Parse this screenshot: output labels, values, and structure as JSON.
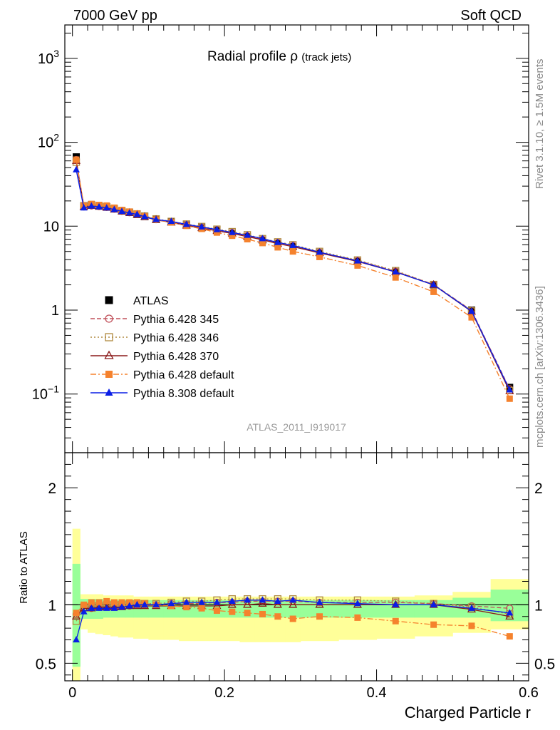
{
  "header": {
    "left": "7000 GeV pp",
    "right": "Soft QCD"
  },
  "side_labels": {
    "rivet": "Rivet 3.1.10, ≥ 1.5M events",
    "mcplots": "mcplots.cern.ch [arXiv:1306.3436]"
  },
  "chart_data": [
    {
      "type": "line",
      "title": "Radial profile",
      "title_symbol": "ρ",
      "title_suffix": "(track jets)",
      "watermark": "ATLAS_2011_I919017",
      "yscale": "log",
      "ylim": [
        0.02,
        2500
      ],
      "xlim": [
        -0.01,
        0.6
      ],
      "y_ticks": [
        {
          "value": 1000,
          "label": "10",
          "sup": "3"
        },
        {
          "value": 100,
          "label": "10",
          "sup": "2"
        },
        {
          "value": 10,
          "label": "10",
          "sup": ""
        },
        {
          "value": 1,
          "label": "1",
          "sup": ""
        },
        {
          "value": 0.1,
          "label": "10",
          "sup": "−1"
        }
      ],
      "x": [
        0.005,
        0.015,
        0.025,
        0.035,
        0.045,
        0.055,
        0.065,
        0.075,
        0.085,
        0.095,
        0.11,
        0.13,
        0.15,
        0.17,
        0.19,
        0.21,
        0.23,
        0.25,
        0.27,
        0.29,
        0.325,
        0.375,
        0.425,
        0.475,
        0.525,
        0.575
      ],
      "legend_position": "bottom-left",
      "series": [
        {
          "name": "ATLAS",
          "color": "#000000",
          "marker": "square",
          "line": "none",
          "values": [
            67,
            17.5,
            18,
            17.5,
            17,
            16.2,
            15.2,
            14.6,
            13.8,
            13.0,
            12.0,
            11.2,
            10.3,
            9.6,
            8.9,
            8.2,
            7.5,
            6.8,
            6.2,
            5.7,
            4.8,
            3.8,
            2.85,
            2.0,
            1.0,
            0.12
          ]
        },
        {
          "name": "Pythia 6.428 345",
          "color": "#c0505a",
          "marker": "open-circle",
          "line": "dashed",
          "values": [
            62,
            17.0,
            17.5,
            17.2,
            16.8,
            16.0,
            15.1,
            14.5,
            13.8,
            13.0,
            12.0,
            11.3,
            10.4,
            9.7,
            9.1,
            8.4,
            7.7,
            7.0,
            6.4,
            5.9,
            4.9,
            3.9,
            2.9,
            2.02,
            0.99,
            0.115
          ]
        },
        {
          "name": "Pythia 6.428 346",
          "color": "#b08a40",
          "marker": "open-square",
          "line": "dotted",
          "values": [
            58,
            17.2,
            17.8,
            17.4,
            17.0,
            16.2,
            15.3,
            14.7,
            14.0,
            13.2,
            12.2,
            11.4,
            10.6,
            9.9,
            9.2,
            8.6,
            7.9,
            7.1,
            6.5,
            6.0,
            5.0,
            3.95,
            2.95,
            2.02,
            0.98,
            0.11
          ]
        },
        {
          "name": "Pythia 6.428 370",
          "color": "#8b1a1a",
          "marker": "open-triangle",
          "line": "solid",
          "values": [
            60,
            17.0,
            17.5,
            17.1,
            16.6,
            15.8,
            15.0,
            14.4,
            13.7,
            12.9,
            11.9,
            11.1,
            10.2,
            9.5,
            8.8,
            8.2,
            7.5,
            6.9,
            6.2,
            5.7,
            4.8,
            3.8,
            2.85,
            2.0,
            0.96,
            0.108
          ]
        },
        {
          "name": "Pythia 6.428 default",
          "color": "#f5822d",
          "marker": "filled-square",
          "line": "dashdot",
          "values": [
            62,
            17.6,
            18.4,
            17.9,
            17.6,
            16.6,
            15.6,
            14.9,
            14.1,
            13.1,
            12.0,
            11.1,
            10.1,
            9.3,
            8.4,
            7.7,
            7.0,
            6.3,
            5.6,
            5.0,
            4.3,
            3.4,
            2.45,
            1.65,
            0.82,
            0.088
          ]
        },
        {
          "name": "Pythia 8.308 default",
          "color": "#0a1ee6",
          "marker": "filled-triangle",
          "line": "solid",
          "values": [
            47,
            16.5,
            17.4,
            17.0,
            16.5,
            15.8,
            15.0,
            14.4,
            13.8,
            13.0,
            12.0,
            11.4,
            10.5,
            9.8,
            9.1,
            8.4,
            7.8,
            7.1,
            6.4,
            5.9,
            4.9,
            3.85,
            2.85,
            2.0,
            0.97,
            0.112
          ]
        }
      ]
    },
    {
      "type": "line",
      "ylabel": "Ratio to ATLAS",
      "xlabel": "Charged Particle r",
      "ylim": [
        0.35,
        2.3
      ],
      "xlim": [
        -0.01,
        0.6
      ],
      "y_ticks": [
        {
          "value": 2,
          "label": "2"
        },
        {
          "value": 1,
          "label": "1"
        },
        {
          "value": 0.5,
          "label": "0.5"
        }
      ],
      "x_ticks": [
        {
          "value": 0,
          "label": "0"
        },
        {
          "value": 0.2,
          "label": "0.2"
        },
        {
          "value": 0.4,
          "label": "0.4"
        },
        {
          "value": 0.6,
          "label": "0.6"
        }
      ],
      "band_inner_color": "#99ff99",
      "band_outer_color": "#ffff99",
      "x_edges": [
        0,
        0.01,
        0.02,
        0.03,
        0.04,
        0.05,
        0.06,
        0.07,
        0.08,
        0.09,
        0.1,
        0.12,
        0.14,
        0.16,
        0.18,
        0.2,
        0.22,
        0.24,
        0.26,
        0.28,
        0.3,
        0.35,
        0.4,
        0.45,
        0.5,
        0.55,
        0.6
      ],
      "band_inner": [
        [
          0.47,
          1.35
        ],
        [
          0.88,
          1.05
        ],
        [
          0.88,
          1.05
        ],
        [
          0.88,
          1.05
        ],
        [
          0.89,
          1.04
        ],
        [
          0.89,
          1.04
        ],
        [
          0.89,
          1.04
        ],
        [
          0.89,
          1.04
        ],
        [
          0.89,
          1.04
        ],
        [
          0.89,
          1.04
        ],
        [
          0.89,
          1.04
        ],
        [
          0.89,
          1.04
        ],
        [
          0.89,
          1.04
        ],
        [
          0.89,
          1.04
        ],
        [
          0.89,
          1.04
        ],
        [
          0.89,
          1.04
        ],
        [
          0.89,
          1.04
        ],
        [
          0.89,
          1.04
        ],
        [
          0.89,
          1.04
        ],
        [
          0.89,
          1.04
        ],
        [
          0.89,
          1.04
        ],
        [
          0.89,
          1.04
        ],
        [
          0.89,
          1.04
        ],
        [
          0.89,
          1.04
        ],
        [
          0.89,
          1.06
        ],
        [
          0.86,
          1.13
        ]
      ],
      "band_outer": [
        [
          0.35,
          1.65
        ],
        [
          0.79,
          1.09
        ],
        [
          0.76,
          1.09
        ],
        [
          0.75,
          1.09
        ],
        [
          0.74,
          1.08
        ],
        [
          0.73,
          1.08
        ],
        [
          0.72,
          1.08
        ],
        [
          0.72,
          1.08
        ],
        [
          0.71,
          1.07
        ],
        [
          0.71,
          1.07
        ],
        [
          0.7,
          1.07
        ],
        [
          0.7,
          1.07
        ],
        [
          0.69,
          1.07
        ],
        [
          0.69,
          1.07
        ],
        [
          0.69,
          1.07
        ],
        [
          0.69,
          1.07
        ],
        [
          0.68,
          1.07
        ],
        [
          0.68,
          1.07
        ],
        [
          0.68,
          1.07
        ],
        [
          0.68,
          1.07
        ],
        [
          0.69,
          1.07
        ],
        [
          0.7,
          1.07
        ],
        [
          0.71,
          1.07
        ],
        [
          0.73,
          1.08
        ],
        [
          0.76,
          1.11
        ],
        [
          0.79,
          1.22
        ]
      ],
      "series": [
        {
          "name": "Pythia 6.428 345",
          "values": [
            0.92,
            0.97,
            0.97,
            0.98,
            0.99,
            0.99,
            0.99,
            0.99,
            1.0,
            1.0,
            1.0,
            1.01,
            1.01,
            1.01,
            1.02,
            1.02,
            1.03,
            1.03,
            1.03,
            1.03,
            1.02,
            1.02,
            1.02,
            1.01,
            0.99,
            0.97
          ]
        },
        {
          "name": "Pythia 6.428 346",
          "values": [
            0.86,
            0.98,
            0.99,
            0.99,
            1.0,
            1.0,
            1.0,
            1.01,
            1.01,
            1.01,
            1.01,
            1.02,
            1.03,
            1.03,
            1.04,
            1.05,
            1.05,
            1.05,
            1.05,
            1.05,
            1.04,
            1.04,
            1.03,
            1.01,
            0.98,
            0.92
          ]
        },
        {
          "name": "Pythia 6.428 370",
          "values": [
            0.9,
            0.97,
            0.97,
            0.98,
            0.98,
            0.98,
            0.98,
            0.99,
            0.99,
            0.99,
            0.99,
            0.99,
            0.99,
            0.99,
            0.99,
            1.0,
            1.0,
            1.01,
            1.0,
            1.0,
            1.0,
            1.0,
            1.0,
            1.0,
            0.96,
            0.9
          ]
        },
        {
          "name": "Pythia 6.428 default",
          "values": [
            0.93,
            1.0,
            1.02,
            1.02,
            1.03,
            1.02,
            1.02,
            1.02,
            1.02,
            1.01,
            1.0,
            0.99,
            0.98,
            0.97,
            0.95,
            0.94,
            0.93,
            0.92,
            0.9,
            0.88,
            0.9,
            0.89,
            0.86,
            0.83,
            0.82,
            0.73
          ]
        },
        {
          "name": "Pythia 8.308 default",
          "values": [
            0.7,
            0.94,
            0.97,
            0.97,
            0.97,
            0.97,
            0.98,
            0.99,
            1.0,
            1.0,
            1.0,
            1.01,
            1.02,
            1.02,
            1.02,
            1.03,
            1.04,
            1.04,
            1.03,
            1.04,
            1.02,
            1.01,
            1.0,
            1.0,
            0.97,
            0.93
          ]
        }
      ]
    }
  ]
}
